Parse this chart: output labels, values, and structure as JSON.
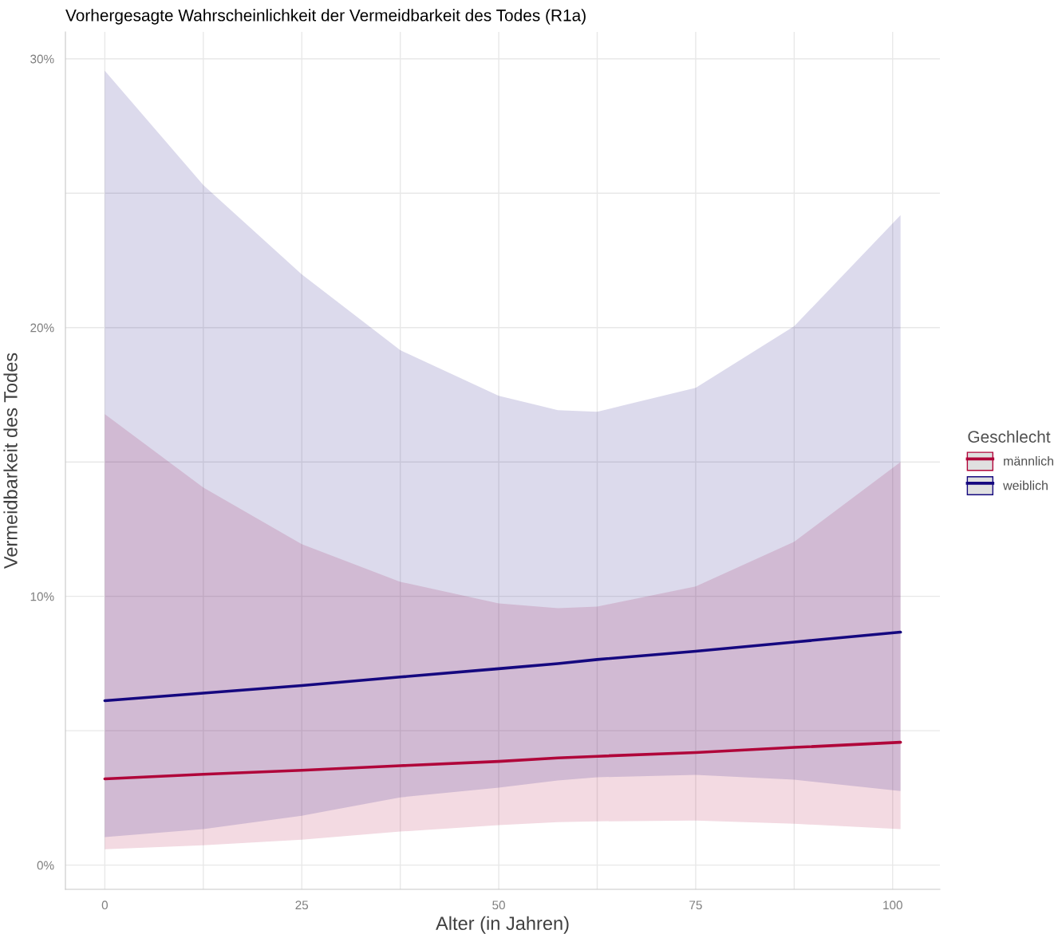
{
  "chart_data": {
    "type": "line",
    "title": "Vorhergesagte Wahrscheinlichkeit der Vermeidbarkeit des Todes (R1a)",
    "xlabel": "Alter (in Jahren)",
    "ylabel": "Vermeidbarkeit des Todes",
    "legend_title": "Geschlecht",
    "legend": "right",
    "grid": true,
    "x": [
      0,
      12.5,
      25,
      37.5,
      50,
      57.5,
      62.5,
      75,
      87.5,
      101
    ],
    "series": [
      {
        "name": "männlich",
        "color": "#b0063a",
        "values": [
          3.21,
          3.38,
          3.53,
          3.7,
          3.86,
          3.99,
          4.05,
          4.19,
          4.38,
          4.57
        ],
        "lower": [
          0.59,
          0.74,
          0.95,
          1.25,
          1.49,
          1.6,
          1.63,
          1.66,
          1.54,
          1.34
        ],
        "upper": [
          16.78,
          14.05,
          11.94,
          10.54,
          9.74,
          9.56,
          9.62,
          10.37,
          12.03,
          15.0
        ]
      },
      {
        "name": "weiblich",
        "color": "#15087f",
        "values": [
          6.12,
          6.4,
          6.68,
          7.0,
          7.31,
          7.5,
          7.65,
          7.96,
          8.3,
          8.67
        ],
        "lower": [
          1.04,
          1.34,
          1.84,
          2.52,
          2.88,
          3.15,
          3.27,
          3.36,
          3.18,
          2.76
        ],
        "upper": [
          29.55,
          25.3,
          21.98,
          19.16,
          17.46,
          16.93,
          16.87,
          17.76,
          20.05,
          24.18
        ]
      }
    ],
    "xlim": [
      -5,
      106
    ],
    "ylim": [
      -0.9,
      31
    ],
    "xticks": [
      0,
      {
        "value": 12.5,
        "label": null
      },
      25,
      {
        "value": 37.5,
        "label": null
      },
      50,
      {
        "value": 62.5,
        "label": null
      },
      75,
      {
        "value": 87.5,
        "label": null
      },
      100
    ],
    "yticks": [
      {
        "value": 0,
        "label": "0%"
      },
      {
        "value": 5,
        "label": null
      },
      {
        "value": 10,
        "label": "10%"
      },
      {
        "value": 15,
        "label": null
      },
      {
        "value": 20,
        "label": "20%"
      },
      {
        "value": 25,
        "label": null
      },
      {
        "value": 30,
        "label": "30%"
      }
    ]
  }
}
